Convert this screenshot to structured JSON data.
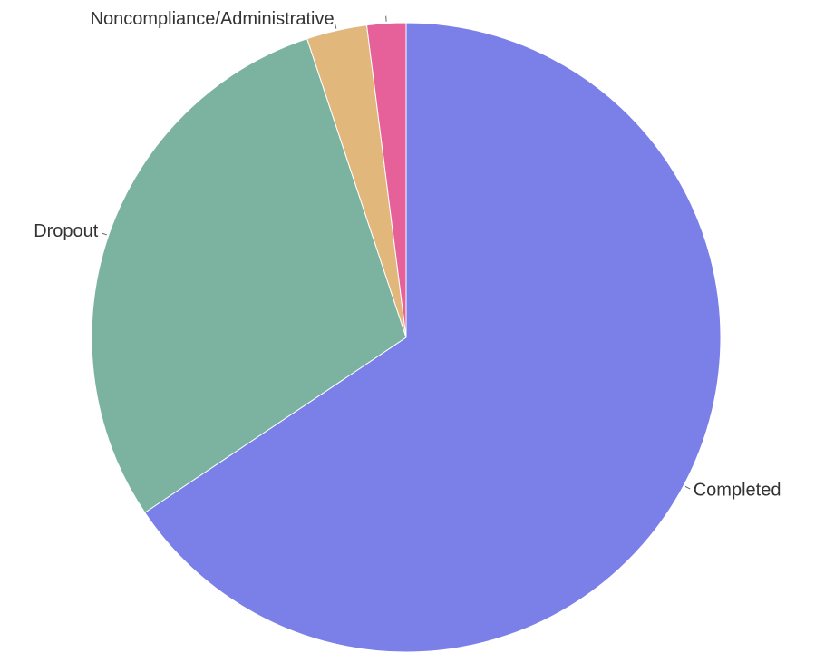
{
  "chart_data": {
    "type": "pie",
    "categories": [
      "Completed",
      "Dropout",
      "Noncompliance/Administrative",
      null
    ],
    "values": [
      65.6,
      29.3,
      3.1,
      2.0
    ],
    "colors": [
      "#7b7fe8",
      "#7bb3a0",
      "#e2b77c",
      "#e6609a"
    ]
  }
}
